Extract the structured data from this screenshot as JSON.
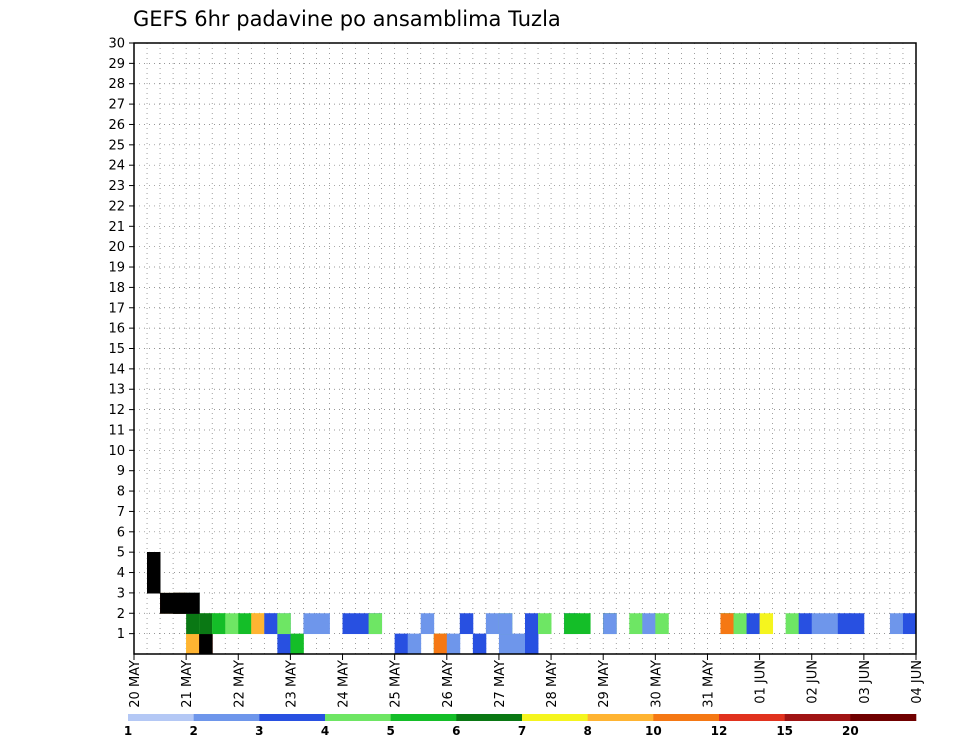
{
  "chart_data": {
    "type": "heatmap",
    "title": "GEFS 6hr padavine po ansamblima Tuzla",
    "xlabel": "",
    "ylabel": "",
    "x_ticks": [
      "20 MAY",
      "21 MAY",
      "22 MAY",
      "23 MAY",
      "24 MAY",
      "25 MAY",
      "26 MAY",
      "27 MAY",
      "28 MAY",
      "29 MAY",
      "30 MAY",
      "31 MAY",
      "01 JUN",
      "02 JUN",
      "03 JUN",
      "04 JUN"
    ],
    "y_ticks": [
      1,
      2,
      3,
      4,
      5,
      6,
      7,
      8,
      9,
      10,
      11,
      12,
      13,
      14,
      15,
      16,
      17,
      18,
      19,
      20,
      21,
      22,
      23,
      24,
      25,
      26,
      27,
      28,
      29,
      30
    ],
    "steps_per_day": 4,
    "n_members": 30,
    "grid": true,
    "legend": "bottom",
    "colorbar": {
      "levels": [
        1,
        2,
        3,
        4,
        5,
        6,
        7,
        8,
        10,
        12,
        15,
        20
      ],
      "colors": [
        "#b4c8f5",
        "#6e96eb",
        "#2850e1",
        "#6ee664",
        "#14be28",
        "#0a7814",
        "#f5f51e",
        "#ffb432",
        "#f57814",
        "#e1321e",
        "#a01414",
        "#700000"
      ]
    },
    "cells": [
      [
        1,
        4,
        6
      ],
      [
        1,
        4,
        7
      ],
      [
        1,
        5,
        8
      ],
      [
        1,
        5,
        10
      ],
      [
        1,
        5,
        12
      ],
      [
        1,
        11,
        2
      ],
      [
        1,
        12,
        4
      ],
      [
        1,
        20,
        2
      ],
      [
        1,
        21,
        1
      ],
      [
        1,
        23,
        3
      ],
      [
        1,
        23,
        8
      ],
      [
        1,
        24,
        1
      ],
      [
        1,
        26,
        2
      ],
      [
        1,
        28,
        1
      ],
      [
        1,
        29,
        1
      ],
      [
        1,
        30,
        2
      ],
      [
        2,
        4,
        5
      ],
      [
        2,
        5,
        3
      ],
      [
        2,
        5,
        5
      ],
      [
        2,
        6,
        3
      ],
      [
        2,
        6,
        4
      ],
      [
        2,
        7,
        3
      ],
      [
        2,
        8,
        4
      ],
      [
        2,
        9,
        6
      ],
      [
        2,
        9,
        7
      ],
      [
        2,
        10,
        1
      ],
      [
        2,
        10,
        2
      ],
      [
        2,
        11,
        1
      ],
      [
        2,
        11,
        3
      ],
      [
        2,
        13,
        1
      ],
      [
        2,
        14,
        1
      ],
      [
        2,
        16,
        2
      ],
      [
        2,
        17,
        2
      ],
      [
        2,
        18,
        2
      ],
      [
        2,
        18,
        3
      ],
      [
        2,
        22,
        1
      ],
      [
        2,
        25,
        2
      ],
      [
        2,
        27,
        1
      ],
      [
        2,
        28,
        3
      ],
      [
        2,
        28,
        1
      ],
      [
        2,
        30,
        2
      ],
      [
        2,
        31,
        3
      ],
      [
        2,
        33,
        2
      ],
      [
        2,
        33,
        4
      ],
      [
        2,
        34,
        4
      ],
      [
        2,
        36,
        5
      ],
      [
        2,
        36,
        1
      ],
      [
        2,
        38,
        3
      ],
      [
        2,
        39,
        1
      ],
      [
        2,
        40,
        3
      ],
      [
        2,
        45,
        4
      ],
      [
        2,
        45,
        8
      ],
      [
        2,
        46,
        3
      ],
      [
        2,
        47,
        2
      ],
      [
        2,
        48,
        6
      ],
      [
        2,
        50,
        3
      ],
      [
        2,
        51,
        2
      ],
      [
        2,
        52,
        1
      ],
      [
        2,
        53,
        1
      ],
      [
        2,
        54,
        2
      ],
      [
        2,
        55,
        2
      ],
      [
        2,
        58,
        1
      ],
      [
        2,
        59,
        2
      ],
      [
        2,
        60,
        3
      ],
      [
        3,
        2,
        3
      ],
      [
        3,
        2,
        10
      ],
      [
        3,
        2,
        12
      ],
      [
        3,
        3,
        6
      ],
      [
        3,
        3,
        5
      ],
      [
        3,
        3,
        9
      ],
      [
        3,
        3,
        13
      ],
      [
        3,
        3,
        20
      ],
      [
        3,
        3,
        23
      ],
      [
        3,
        3,
        27
      ],
      [
        3,
        4,
        1
      ],
      [
        3,
        4,
        3
      ],
      [
        3,
        4,
        14
      ],
      [
        3,
        4,
        16
      ],
      [
        3,
        4,
        22
      ],
      [
        3,
        4,
        30
      ],
      [
        4,
        1,
        2
      ],
      [
        4,
        1,
        3
      ],
      [
        4,
        1,
        8
      ],
      [
        4,
        1,
        10
      ],
      [
        4,
        1,
        12
      ],
      [
        4,
        1,
        13
      ],
      [
        4,
        1,
        14
      ],
      [
        4,
        1,
        16
      ],
      [
        4,
        1,
        22
      ],
      [
        4,
        1,
        25
      ],
      [
        4,
        1,
        26
      ],
      [
        5,
        1,
        11
      ],
      [
        5,
        1,
        19
      ],
      [
        5,
        1,
        21
      ],
      [
        5,
        1,
        23
      ],
      [
        5,
        1,
        25
      ],
      [
        5,
        1,
        26
      ],
      [
        5,
        1,
        28
      ]
    ]
  }
}
